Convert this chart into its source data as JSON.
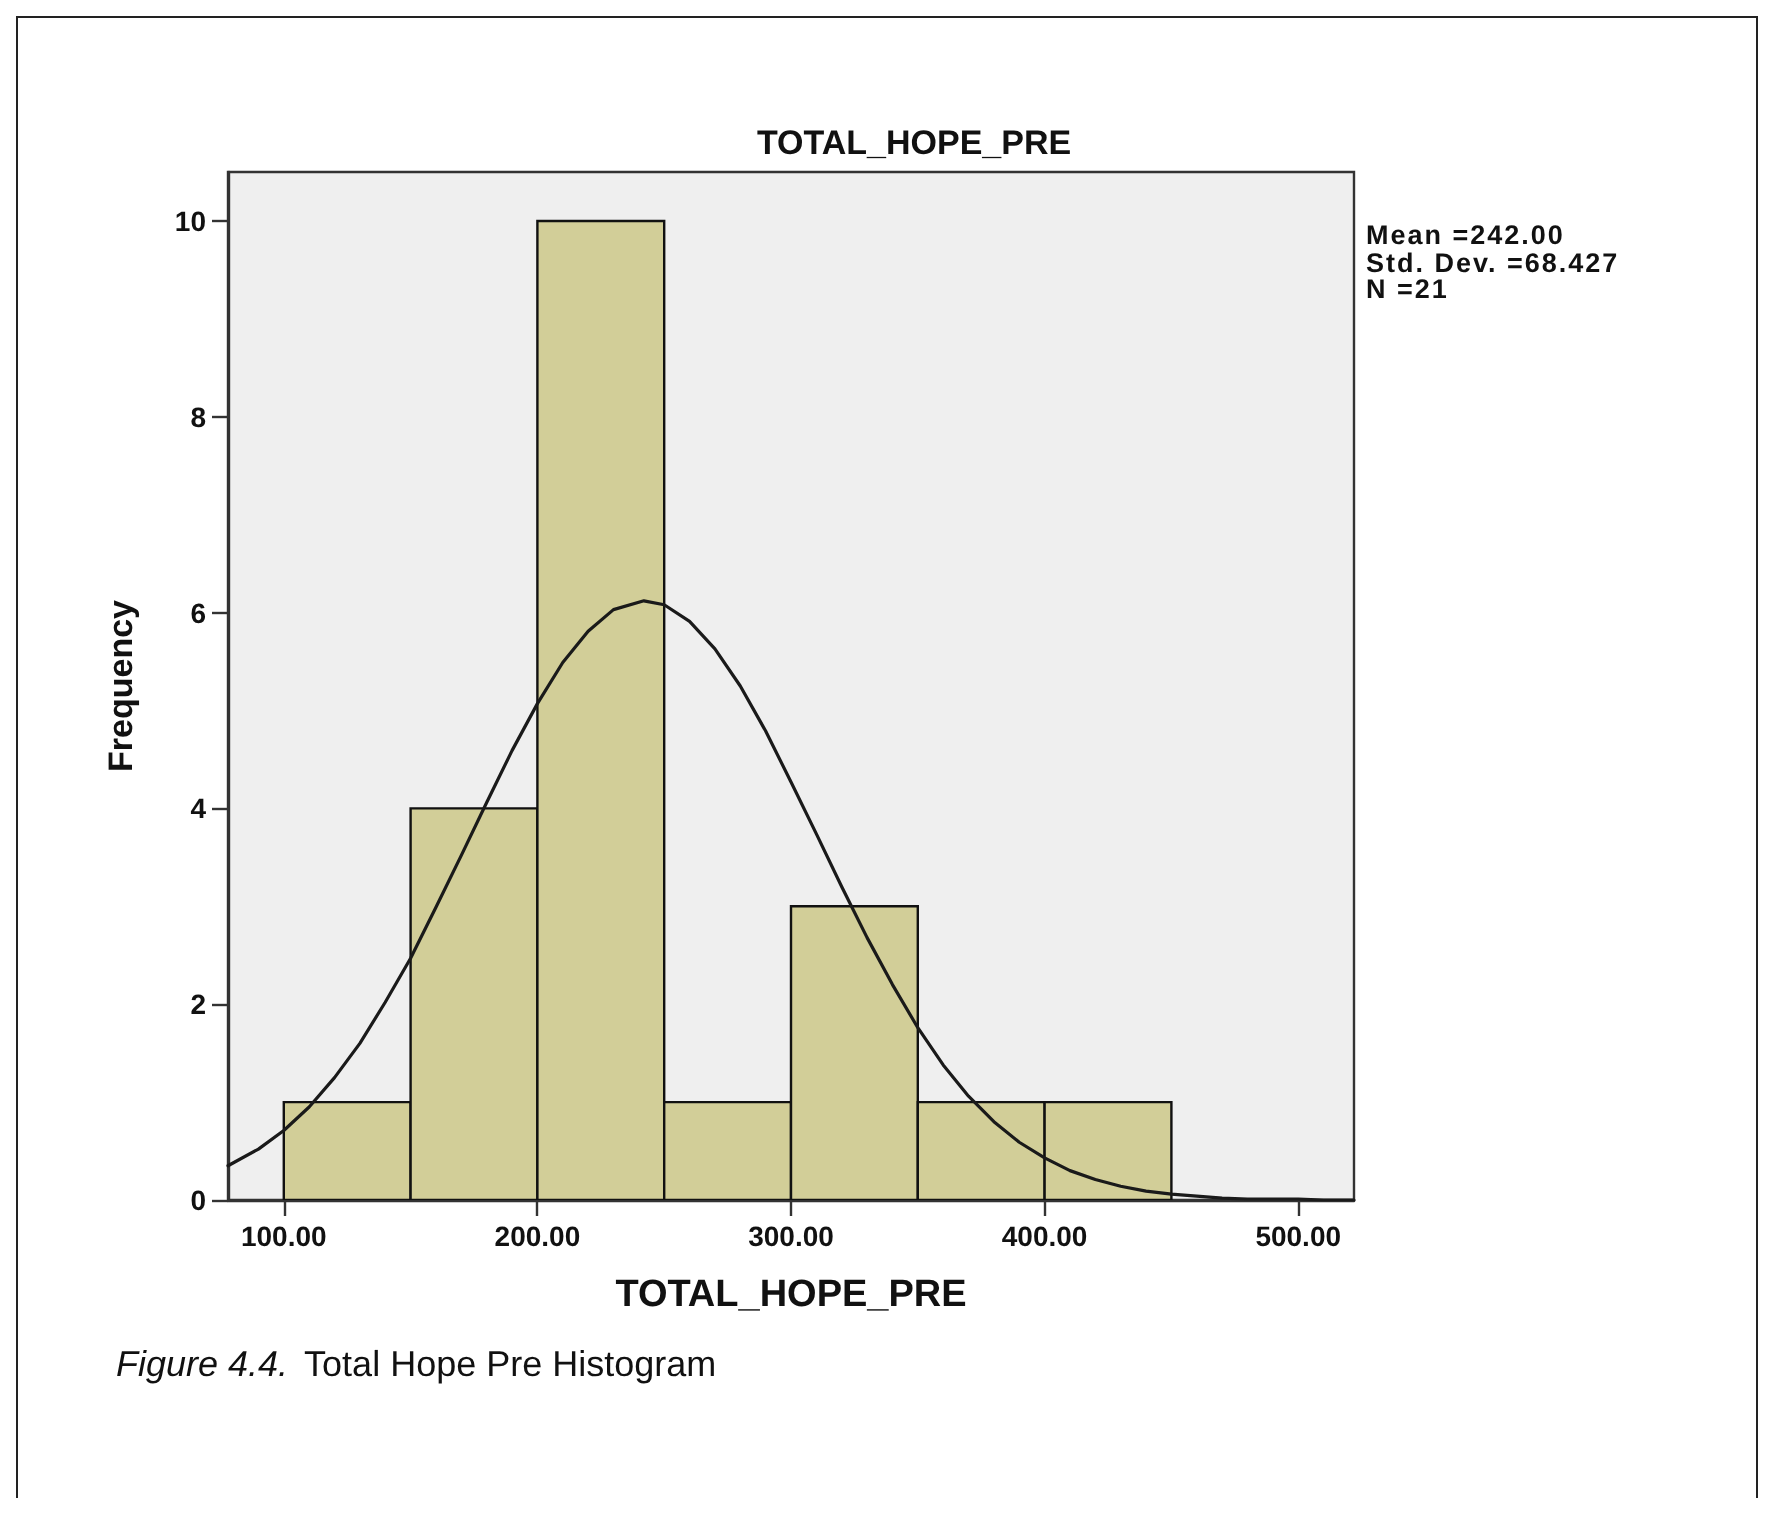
{
  "chart_data": {
    "type": "histogram",
    "title": "TOTAL_HOPE_PRE",
    "xlabel": "TOTAL_HOPE_PRE",
    "ylabel": "Frequency",
    "bins": [
      100,
      150,
      200,
      250,
      300,
      350,
      400,
      450
    ],
    "series": [
      {
        "color": "#d2ce98",
        "values": [
          1,
          4,
          10,
          1,
          3,
          1,
          1
        ]
      },
      {
        "type": "line",
        "color": "#1a1a1a",
        "x": [
          78,
          90,
          100,
          110,
          120,
          130,
          140,
          150,
          160,
          170,
          180,
          190,
          200,
          210,
          220,
          230,
          242,
          250,
          260,
          270,
          280,
          290,
          300,
          310,
          320,
          330,
          340,
          350,
          360,
          370,
          380,
          390,
          400,
          410,
          420,
          430,
          440,
          450,
          460,
          470,
          480,
          490,
          500,
          510,
          522
        ],
        "values": [
          0.35,
          0.52,
          0.71,
          0.95,
          1.25,
          1.6,
          2.02,
          2.47,
          2.99,
          3.52,
          4.06,
          4.59,
          5.07,
          5.49,
          5.81,
          6.03,
          6.12,
          6.08,
          5.91,
          5.63,
          5.25,
          4.79,
          4.27,
          3.74,
          3.2,
          2.68,
          2.2,
          1.76,
          1.38,
          1.06,
          0.8,
          0.59,
          0.43,
          0.3,
          0.21,
          0.14,
          0.09,
          0.06,
          0.04,
          0.02,
          0.01,
          0.01,
          0.01,
          0,
          0
        ]
      }
    ],
    "xlim": [
      78,
      522
    ],
    "xticks": [
      {
        "value": 100,
        "label": "100.00"
      },
      {
        "value": 200,
        "label": "200.00"
      },
      {
        "value": 300,
        "label": "300.00"
      },
      {
        "value": 400,
        "label": "400.00"
      },
      {
        "value": 500,
        "label": "500.00"
      }
    ],
    "ylim": [
      0,
      10.5
    ],
    "yticks": [
      0,
      2,
      4,
      6,
      8,
      10
    ],
    "grid": false,
    "marker": "none",
    "annotations": [
      "Mean =242.00",
      "Std. Dev. =68.427",
      "N =21",
      "Figure 4.4.",
      "Total Hope Pre Histogram"
    ]
  }
}
